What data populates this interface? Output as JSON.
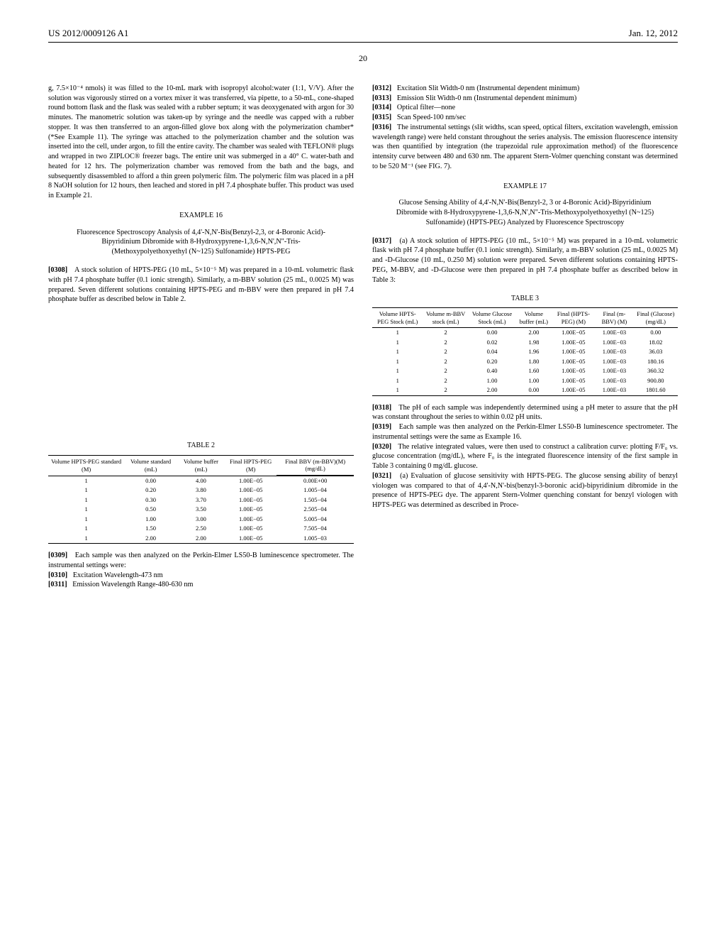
{
  "header": {
    "left": "US 2012/0009126 A1",
    "right": "Jan. 12, 2012"
  },
  "pagenum": "20",
  "col1": {
    "p1": "g, 7.5×10⁻⁴ nmols) it was filled to the 10-mL mark with isopropyl alcohol:water (1:1, V/V). After the solution was vigorously stirred on a vortex mixer it was transferred, via pipette, to a 50-mL, cone-shaped round bottom flask and the flask was sealed with a rubber septum; it was deoxygenated with argon for 30 minutes. The manometric solution was taken-up by syringe and the needle was capped with a rubber stopper. It was then transferred to an argon-filled glove box along with the polymerization chamber* (*See Example 11). The syringe was attached to the polymerization chamber and the solution was inserted into the cell, under argon, to fill the entire cavity. The chamber was sealed with TEFLON® plugs and wrapped in two ZIPLOC® freezer bags. The entire unit was submerged in a 40° C. water-bath and heated for 12 hrs. The polymerization chamber was removed from the bath and the bags, and subsequently disassembled to afford a thin green polymeric film. The polymeric film was placed in a pH 8 NaOH solution for 12 hours, then leached and stored in pH 7.4 phosphate buffer. This product was used in Example 21.",
    "ex16": "EXAMPLE 16",
    "ex16title": "Fluorescence Spectroscopy Analysis of 4,4'-N,N'-Bis(Benzyl-2,3, or 4-Boronic Acid)-Bipyridinium Dibromide with 8-Hydroxypyrene-1,3,6-N,N',N\"-Tris-(Methoxypolyethoxyethyl (N~125) Sulfonamide) HPTS-PEG",
    "p0308n": "[0308]",
    "p0308": "A stock solution of HPTS-PEG (10 mL, 5×10⁻⁵ M) was prepared in a 10-mL volumetric flask with pH 7.4 phosphate buffer (0.1 ionic strength). Similarly, a m-BBV solution (25 mL, 0.0025 M) was prepared. Seven different solutions containing HPTS-PEG and m-BBV were then prepared in pH 7.4 phosphate buffer as described below in Table 2.",
    "table2": {
      "label": "TABLE 2",
      "cols": [
        "Volume HPTS-PEG standard (M)",
        "Volume standard (mL)",
        "Volume buffer (mL)",
        "Final HPTS-PEG (M)",
        "Final BBV (m-BBV)(M) (mg/dL)"
      ],
      "rows": [
        [
          "1",
          "0.00",
          "4.00",
          "1.00E−05",
          "0.00E+00"
        ],
        [
          "1",
          "0.20",
          "3.80",
          "1.00E−05",
          "1.005−04"
        ],
        [
          "1",
          "0.30",
          "3.70",
          "1.00E−05",
          "1.505−04"
        ],
        [
          "1",
          "0.50",
          "3.50",
          "1.00E−05",
          "2.505−04"
        ],
        [
          "1",
          "1.00",
          "3.00",
          "1.00E−05",
          "5.005−04"
        ],
        [
          "1",
          "1.50",
          "2.50",
          "1.00E−05",
          "7.505−04"
        ],
        [
          "1",
          "2.00",
          "2.00",
          "1.00E−05",
          "1.005−03"
        ]
      ]
    },
    "p0309n": "[0309]",
    "p0309": "Each sample was then analyzed on the Perkin-Elmer LS50-B luminescence spectrometer. The instrumental settings were:",
    "p0310n": "[0310]",
    "p0310": "Excitation Wavelength-473 nm",
    "p0311n": "[0311]",
    "p0311": "Emission Wavelength Range-480-630 nm"
  },
  "col2": {
    "p0312n": "[0312]",
    "p0312": "Excitation Slit Width-0 nm (Instrumental dependent minimum)",
    "p0313n": "[0313]",
    "p0313": "Emission Slit Width-0 nm (Instrumental dependent minimum)",
    "p0314n": "[0314]",
    "p0314": "Optical filter—none",
    "p0315n": "[0315]",
    "p0315": "Scan Speed-100 nm/sec",
    "p0316n": "[0316]",
    "p0316": "The instrumental settings (slit widths, scan speed, optical filters, excitation wavelength, emission wavelength range) were held constant throughout the series analysis. The emission fluorescence intensity was then quantified by integration (the trapezoidal rule approximation method) of the fluorescence intensity curve between 480 and 630 nm. The apparent Stern-Volmer quenching constant was determined to be 520 M⁻¹ (see FIG. 7).",
    "ex17": "EXAMPLE 17",
    "ex17title": "Glucose Sensing Ability of 4,4'-N,N'-Bis(Benzyl-2, 3 or 4-Boronic Acid)-Bipyridinium Dibromide with 8-Hydroxypyrene-1,3,6-N,N',N\"-Tris-Methoxypolyethoxyethyl (N~125) Sulfonamide) (HPTS-PEG) Analyzed by Fluorescence Spectroscopy",
    "p0317n": "[0317]",
    "p0317": "(a) A stock solution of HPTS-PEG (10 mL, 5×10⁻⁵ M) was prepared in a 10-mL volumetric flask with pH 7.4 phosphate buffer (0.1 ionic strength). Similarly, a m-BBV solution (25 mL, 0.0025 M) and -D-Glucose (10 mL, 0.250 M) solution were prepared. Seven different solutions containing HPTS-PEG, M-BBV, and -D-Glucose were then prepared in pH 7.4 phosphate buffer as described below in Table 3:",
    "table3": {
      "label": "TABLE 3",
      "cols": [
        "Volume HPTS-PEG Stock (mL)",
        "Volume m-BBV stock (mL)",
        "Volume Glucose Stock (mL)",
        "Volume buffer (mL)",
        "Final (HPTS-PEG) (M)",
        "Final (m-BBV) (M)",
        "Final (Glucose) (mg/dL)"
      ],
      "rows": [
        [
          "1",
          "2",
          "0.00",
          "2.00",
          "1.00E−05",
          "1.00E−03",
          "0.00"
        ],
        [
          "1",
          "2",
          "0.02",
          "1.98",
          "1.00E−05",
          "1.00E−03",
          "18.02"
        ],
        [
          "1",
          "2",
          "0.04",
          "1.96",
          "1.00E−05",
          "1.00E−03",
          "36.03"
        ],
        [
          "1",
          "2",
          "0.20",
          "1.80",
          "1.00E−05",
          "1.00E−03",
          "180.16"
        ],
        [
          "1",
          "2",
          "0.40",
          "1.60",
          "1.00E−05",
          "1.00E−03",
          "360.32"
        ],
        [
          "1",
          "2",
          "1.00",
          "1.00",
          "1.00E−05",
          "1.00E−03",
          "900.80"
        ],
        [
          "1",
          "2",
          "2.00",
          "0.00",
          "1.00E−05",
          "1.00E−03",
          "1801.60"
        ]
      ]
    },
    "p0318n": "[0318]",
    "p0318": "The pH of each sample was independently determined using a pH meter to assure that the pH was constant throughout the series to within 0.02 pH units.",
    "p0319n": "[0319]",
    "p0319": "Each sample was then analyzed on the Perkin-Elmer LS50-B luminescence spectrometer. The instrumental settings were the same as Example 16.",
    "p0320n": "[0320]",
    "p0320": "The relative integrated values, were then used to construct a calibration curve: plotting F/F₀ vs. glucose concentration (mg/dL), where F₀ is the integrated fluorescence intensity of the first sample in Table 3 containing 0 mg/dL glucose.",
    "p0321n": "[0321]",
    "p0321": "(a) Evaluation of glucose sensitivity with HPTS-PEG. The glucose sensing ability of benzyl viologen was compared to that of 4,4'-N,N'-bis(benzyl-3-boronic acid)-bipyridinium dibromide in the presence of HPTS-PEG dye. The apparent Stern-Volmer quenching constant for benzyl viologen with HPTS-PEG was determined as described in Proce-"
  }
}
